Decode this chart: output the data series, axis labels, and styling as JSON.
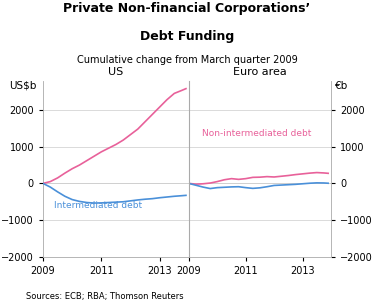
{
  "title_line1": "Private Non-financial Corporations’",
  "title_line2": "Debt Funding",
  "subtitle": "Cumulative change from March quarter 2009",
  "left_ylabel": "US$b",
  "right_ylabel": "€b",
  "left_panel_label": "US",
  "right_panel_label": "Euro area",
  "source": "Sources: ECB; RBA; Thomson Reuters",
  "ylim": [
    -2000,
    2800
  ],
  "yticks": [
    -2000,
    -1000,
    0,
    1000,
    2000
  ],
  "us_years": [
    2009.0,
    2009.25,
    2009.5,
    2009.75,
    2010.0,
    2010.25,
    2010.5,
    2010.75,
    2011.0,
    2011.25,
    2011.5,
    2011.75,
    2012.0,
    2012.25,
    2012.5,
    2012.75,
    2013.0,
    2013.25,
    2013.5,
    2013.75,
    2013.9
  ],
  "us_non_intermediated": [
    0,
    50,
    150,
    280,
    400,
    500,
    620,
    740,
    860,
    960,
    1060,
    1180,
    1330,
    1480,
    1680,
    1880,
    2080,
    2280,
    2450,
    2530,
    2580
  ],
  "us_intermediated": [
    0,
    -100,
    -230,
    -350,
    -440,
    -490,
    -520,
    -535,
    -530,
    -520,
    -510,
    -500,
    -475,
    -450,
    -430,
    -415,
    -390,
    -370,
    -350,
    -335,
    -325
  ],
  "euro_years": [
    2009.0,
    2009.25,
    2009.5,
    2009.75,
    2010.0,
    2010.25,
    2010.5,
    2010.75,
    2011.0,
    2011.25,
    2011.5,
    2011.75,
    2012.0,
    2012.25,
    2012.5,
    2012.75,
    2013.0,
    2013.25,
    2013.5,
    2013.75,
    2013.9
  ],
  "euro_non_intermediated": [
    0,
    -20,
    -10,
    10,
    50,
    100,
    130,
    110,
    130,
    165,
    170,
    185,
    175,
    195,
    215,
    240,
    260,
    280,
    295,
    285,
    275
  ],
  "euro_intermediated": [
    0,
    -50,
    -100,
    -140,
    -115,
    -105,
    -95,
    -90,
    -115,
    -135,
    -120,
    -90,
    -55,
    -45,
    -35,
    -25,
    -10,
    5,
    15,
    12,
    5
  ],
  "non_inter_color": "#E8619A",
  "inter_color": "#4A90D9",
  "background_color": "#ffffff",
  "grid_color": "#cccccc",
  "spine_color": "#aaaaaa"
}
